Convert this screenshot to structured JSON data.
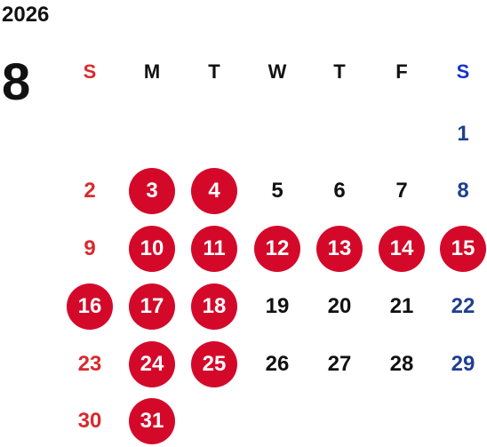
{
  "header": {
    "year": "2026",
    "month": "8"
  },
  "colors": {
    "highlight": "#d4092a",
    "sunday": "#d9292e",
    "saturday": "#1f3f8f",
    "saturday_header": "#1433cc",
    "weekday": "#111111"
  },
  "weekdays": [
    "S",
    "M",
    "T",
    "W",
    "T",
    "F",
    "S"
  ],
  "weeks": [
    [
      null,
      null,
      null,
      null,
      null,
      null,
      {
        "day": "1",
        "hl": false
      }
    ],
    [
      {
        "day": "2",
        "hl": false
      },
      {
        "day": "3",
        "hl": true
      },
      {
        "day": "4",
        "hl": true
      },
      {
        "day": "5",
        "hl": false
      },
      {
        "day": "6",
        "hl": false
      },
      {
        "day": "7",
        "hl": false
      },
      {
        "day": "8",
        "hl": false
      }
    ],
    [
      {
        "day": "9",
        "hl": false
      },
      {
        "day": "10",
        "hl": true
      },
      {
        "day": "11",
        "hl": true
      },
      {
        "day": "12",
        "hl": true
      },
      {
        "day": "13",
        "hl": true
      },
      {
        "day": "14",
        "hl": true
      },
      {
        "day": "15",
        "hl": true
      }
    ],
    [
      {
        "day": "16",
        "hl": true
      },
      {
        "day": "17",
        "hl": true
      },
      {
        "day": "18",
        "hl": true
      },
      {
        "day": "19",
        "hl": false
      },
      {
        "day": "20",
        "hl": false
      },
      {
        "day": "21",
        "hl": false
      },
      {
        "day": "22",
        "hl": false
      }
    ],
    [
      {
        "day": "23",
        "hl": false
      },
      {
        "day": "24",
        "hl": true
      },
      {
        "day": "25",
        "hl": true
      },
      {
        "day": "26",
        "hl": false
      },
      {
        "day": "27",
        "hl": false
      },
      {
        "day": "28",
        "hl": false
      },
      {
        "day": "29",
        "hl": false
      }
    ],
    [
      {
        "day": "30",
        "hl": false
      },
      {
        "day": "31",
        "hl": true
      },
      null,
      null,
      null,
      null,
      null
    ]
  ]
}
